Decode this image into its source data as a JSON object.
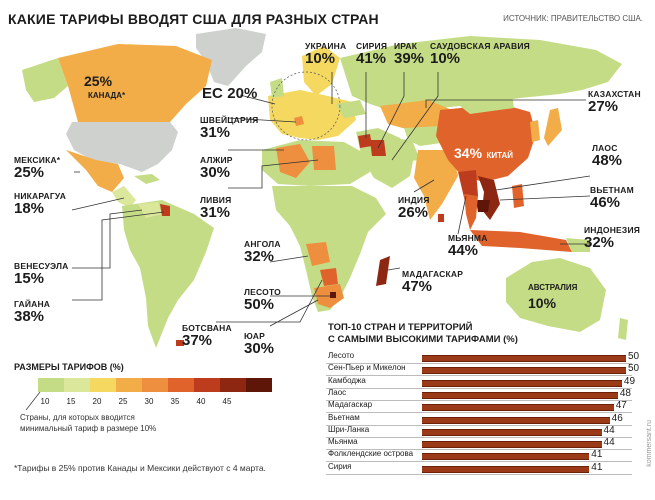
{
  "title": "КАКИЕ ТАРИФЫ ВВОДЯТ США ДЛЯ РАЗНЫХ СТРАН",
  "source": "ИСТОЧНИК: ПРАВИТЕЛЬСТВО США.",
  "colors": {
    "ocean": "#ffffff",
    "no_data": "#cfd1cf",
    "t10": "#c5dc86",
    "t15": "#dbe79a",
    "t20": "#f4d85f",
    "t25": "#f2ac48",
    "t30": "#ee8f3f",
    "t35": "#e0632c",
    "t40": "#bd3c1e",
    "t45": "#8e2712",
    "t50": "#5e1608"
  },
  "labels": {
    "canada": {
      "name": "КАНАДА*",
      "pct": "25%"
    },
    "eu": {
      "name": "ЕС",
      "pct": "20%"
    },
    "switzerland": {
      "name": "ШВЕЙЦАРИЯ",
      "pct": "31%"
    },
    "algeria": {
      "name": "АЛЖИР",
      "pct": "30%"
    },
    "libya": {
      "name": "ЛИВИЯ",
      "pct": "31%"
    },
    "mexico": {
      "name": "МЕКСИКА*",
      "pct": "25%"
    },
    "nicaragua": {
      "name": "НИКАРАГУА",
      "pct": "18%"
    },
    "venezuela": {
      "name": "ВЕНЕСУЭЛА",
      "pct": "15%"
    },
    "guyana": {
      "name": "ГАЙАНА",
      "pct": "38%"
    },
    "angola": {
      "name": "АНГОЛА",
      "pct": "32%"
    },
    "lesotho": {
      "name": "ЛЕСОТО",
      "pct": "50%"
    },
    "botswana": {
      "name": "БОТСВАНА",
      "pct": "37%"
    },
    "south_africa": {
      "name": "ЮАР",
      "pct": "30%"
    },
    "ukraine": {
      "name": "УКРАИНА",
      "pct": "10%"
    },
    "syria": {
      "name": "СИРИЯ",
      "pct": "41%"
    },
    "iraq": {
      "name": "ИРАК",
      "pct": "39%"
    },
    "saudi": {
      "name": "САУДОВСКАЯ АРАВИЯ",
      "pct": "10%"
    },
    "kazakhstan": {
      "name": "КАЗАХСТАН",
      "pct": "27%"
    },
    "china": {
      "name": "КИТАЙ",
      "pct": "34%"
    },
    "laos": {
      "name": "ЛАОС",
      "pct": "48%"
    },
    "vietnam": {
      "name": "ВЬЕТНАМ",
      "pct": "46%"
    },
    "india": {
      "name": "ИНДИЯ",
      "pct": "26%"
    },
    "myanmar": {
      "name": "МЬЯНМА",
      "pct": "44%"
    },
    "indonesia": {
      "name": "ИНДОНЕЗИЯ",
      "pct": "32%"
    },
    "madagascar": {
      "name": "МАДАГАСКАР",
      "pct": "47%"
    },
    "australia": {
      "name": "АВСТРАЛИЯ",
      "pct": "10%"
    }
  },
  "legend": {
    "title": "РАЗМЕРЫ ТАРИФОВ (%)",
    "ticks": [
      "10",
      "15",
      "20",
      "25",
      "30",
      "35",
      "40",
      "45"
    ],
    "note": "Страны, для которых вводится минимальный тариф в размере 10%"
  },
  "footnote": "*Тарифы в 25% против Канады и Мексики действуют с 4 марта.",
  "top10": {
    "title_line1": "ТОП-10 СТРАН И ТЕРРИТОРИЙ",
    "title_line2": "С САМЫМИ ВЫСОКИМИ ТАРИФАМИ (%)",
    "rows": [
      {
        "name": "Лесото",
        "value": 50
      },
      {
        "name": "Сен-Пьер и Микелон",
        "value": 50
      },
      {
        "name": "Камбоджа",
        "value": 49
      },
      {
        "name": "Лаос",
        "value": 48
      },
      {
        "name": "Мадагаскар",
        "value": 47
      },
      {
        "name": "Вьетнам",
        "value": 46
      },
      {
        "name": "Шри-Ланка",
        "value": 44
      },
      {
        "name": "Мьянма",
        "value": 44
      },
      {
        "name": "Фолклендские острова",
        "value": 41
      },
      {
        "name": "Сирия",
        "value": 41
      }
    ]
  },
  "watermark": "kommersant.ru"
}
